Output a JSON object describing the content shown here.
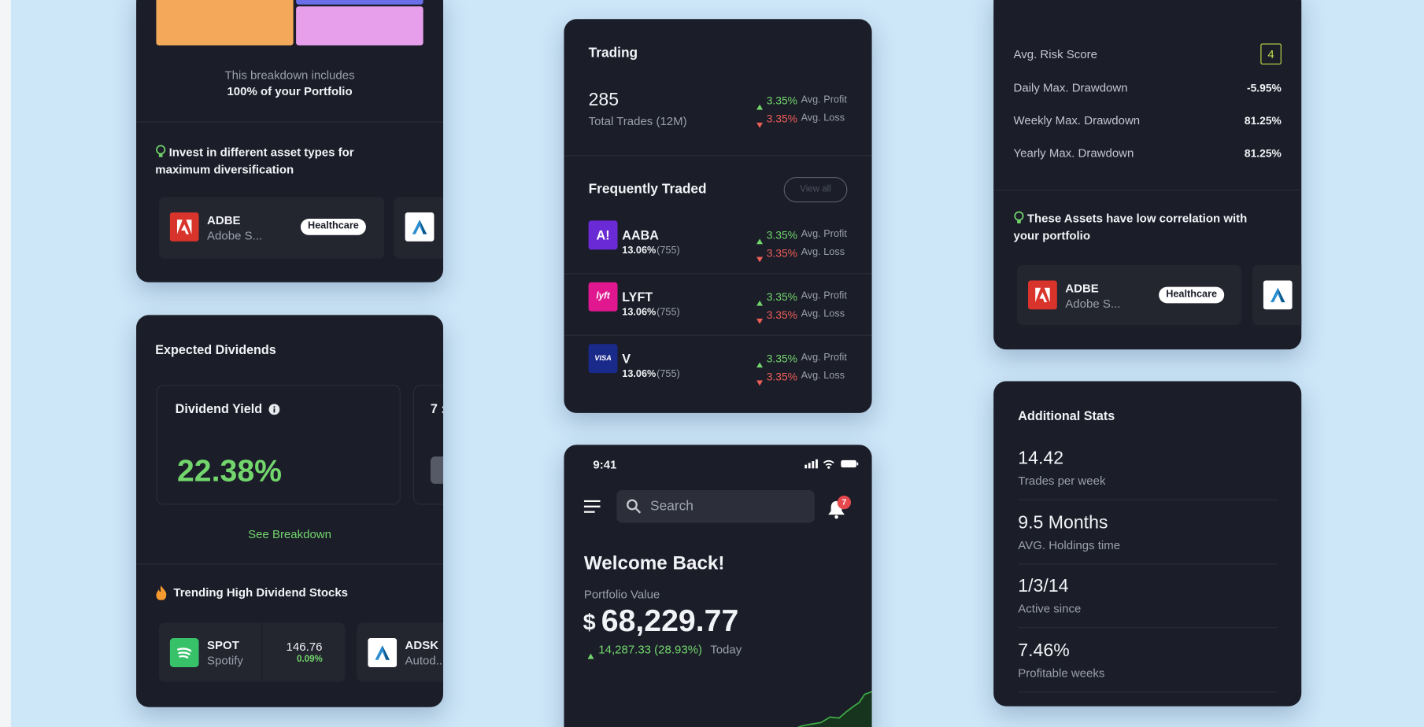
{
  "breakdown_card": {
    "summary": "This breakdown includes",
    "summary_bold": "100% of your Portfolio",
    "tip": "Invest in different asset types for maximum diversification",
    "assets": [
      {
        "ticker": "ADBE",
        "name": "Adobe S...",
        "tag": "Healthcare"
      }
    ]
  },
  "dividends_card": {
    "title": "Expected Dividends",
    "yield_label": "Dividend Yield",
    "yield_value": "22.38%",
    "next_tile_label": "7 :",
    "link": "See Breakdown",
    "trending_title": "Trending High Dividend Stocks",
    "stocks": [
      {
        "ticker": "SPOT",
        "name": "Spotify",
        "price": "146.76",
        "change": "0.09%"
      },
      {
        "ticker": "ADSK",
        "name": "Autod..."
      }
    ]
  },
  "trading_card": {
    "title": "Trading",
    "total_trades": "285",
    "total_trades_label": "Total Trades (12M)",
    "avg_profit": "3.35%",
    "avg_profit_label": "Avg. Profit",
    "avg_loss": "3.35%",
    "avg_loss_label": "Avg. Loss",
    "frequent_title": "Frequently Traded",
    "view_all": "View all",
    "rows": [
      {
        "logo": "A!",
        "ticker": "AABA",
        "share": "13.06%",
        "count": "(755)",
        "avg_profit": "3.35%",
        "avg_profit_label": "Avg. Profit",
        "avg_loss": "3.35%",
        "avg_loss_label": "Avg. Loss"
      },
      {
        "logo": "lyft",
        "ticker": "LYFT",
        "share": "13.06%",
        "count": "(755)",
        "avg_profit": "3.35%",
        "avg_profit_label": "Avg. Profit",
        "avg_loss": "3.35%",
        "avg_loss_label": "Avg. Loss"
      },
      {
        "logo": "VISA",
        "ticker": "V",
        "share": "13.06%",
        "count": "(755)",
        "avg_profit": "3.35%",
        "avg_profit_label": "Avg. Profit",
        "avg_loss": "3.35%",
        "avg_loss_label": "Avg. Loss"
      }
    ]
  },
  "home_screen": {
    "time": "9:41",
    "search_placeholder": "Search",
    "notification_count": "7",
    "greeting": "Welcome Back!",
    "portfolio_label": "Portfolio Value",
    "currency": "$",
    "portfolio_value": "68,229.77",
    "change": "14,287.33 (28.93%)",
    "change_period": "Today"
  },
  "risk_card": {
    "risk_label": "Avg. Risk Score",
    "risk_score": "4",
    "drawdowns": [
      {
        "label": "Daily Max. Drawdown",
        "value": "-5.95%"
      },
      {
        "label": "Weekly Max. Drawdown",
        "value": "81.25%"
      },
      {
        "label": "Yearly Max. Drawdown",
        "value": "81.25%"
      }
    ],
    "tip": "These Assets have low correlation with your portfolio",
    "assets": [
      {
        "ticker": "ADBE",
        "name": "Adobe S...",
        "tag": "Healthcare"
      }
    ]
  },
  "stats_card": {
    "title": "Additional Stats",
    "stats": [
      {
        "value": "14.42",
        "label": "Trades per week"
      },
      {
        "value": "9.5 Months",
        "label": "AVG. Holdings time"
      },
      {
        "value": "1/3/14",
        "label": "Active since"
      },
      {
        "value": "7.46%",
        "label": "Profitable weeks"
      }
    ]
  }
}
